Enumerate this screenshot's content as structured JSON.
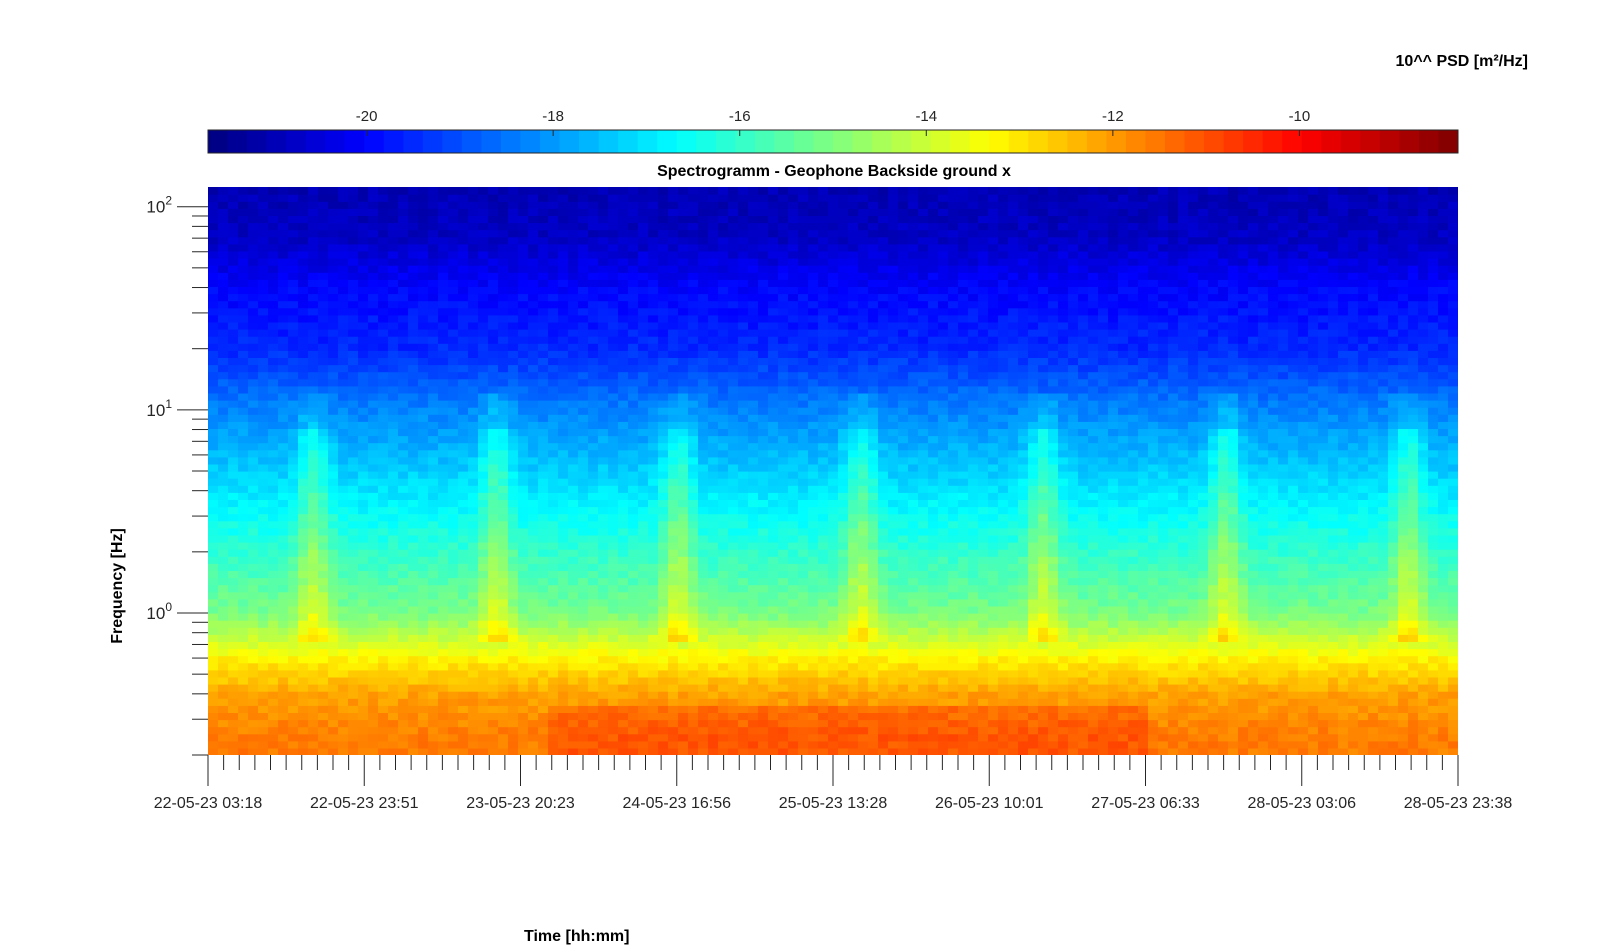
{
  "chart_data": {
    "type": "heatmap",
    "title": "Spectrogramm - Geophone Backside ground x",
    "xlabel": "Time [hh:mm]",
    "ylabel": "Frequency [Hz]",
    "x_ticks": [
      "22-05-23 03:18",
      "22-05-23 23:51",
      "23-05-23 20:23",
      "24-05-23 16:56",
      "25-05-23 13:28",
      "26-05-23 10:01",
      "27-05-23 06:33",
      "28-05-23 03:06",
      "28-05-23 23:38"
    ],
    "xlim": [
      "22-05-23 03:18",
      "28-05-23 23:38"
    ],
    "y_scale": "log",
    "ylim": [
      0.2,
      125
    ],
    "y_tick_values": [
      1,
      10,
      100
    ],
    "y_ticks": [
      {
        "base": "10",
        "exp": "0"
      },
      {
        "base": "10",
        "exp": "1"
      },
      {
        "base": "10",
        "exp": "2"
      }
    ],
    "colorbar": {
      "label": "10^^ PSD [m²/Hz]",
      "range": [
        -21.7,
        -8.3
      ],
      "tick_values": [
        -20,
        -18,
        -16,
        -14,
        -12,
        -10
      ],
      "ticks": [
        "-20",
        "-18",
        "-16",
        "-14",
        "-12",
        "-10"
      ],
      "colormap": "jet",
      "placement": "top"
    },
    "psd_profile_by_frequency": [
      {
        "freq_hz": 120,
        "log_psd": -21.0
      },
      {
        "freq_hz": 70,
        "log_psd": -20.8
      },
      {
        "freq_hz": 40,
        "log_psd": -20.0
      },
      {
        "freq_hz": 20,
        "log_psd": -19.5
      },
      {
        "freq_hz": 10,
        "log_psd": -18.3
      },
      {
        "freq_hz": 7,
        "log_psd": -17.8
      },
      {
        "freq_hz": 3,
        "log_psd": -16.6
      },
      {
        "freq_hz": 1,
        "log_psd": -15.1
      },
      {
        "freq_hz": 0.6,
        "log_psd": -13.2
      },
      {
        "freq_hz": 0.4,
        "log_psd": -12.1
      },
      {
        "freq_hz": 0.25,
        "log_psd": -11.6
      }
    ]
  }
}
